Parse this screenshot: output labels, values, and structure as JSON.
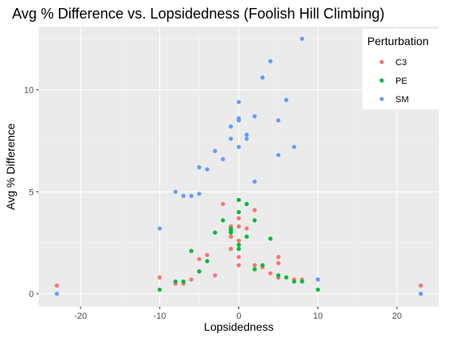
{
  "chart_data": {
    "type": "scatter",
    "title": "Avg % Difference vs. Lopsidedness (Foolish Hill Climbing)",
    "xlabel": "Lopsidedness",
    "ylabel": "Avg % Difference",
    "xlim": [
      -25.3,
      25.3
    ],
    "ylim": [
      -0.63,
      13.1
    ],
    "xticks": [
      -20,
      -10,
      0,
      10,
      20
    ],
    "yticks": [
      0,
      5,
      10
    ],
    "grid": true,
    "legend": {
      "title": "Perturbation",
      "position": "top-right"
    },
    "colors": {
      "C3": "#F8766D",
      "PE": "#00BA38",
      "SM": "#619CFF",
      "panel": "#EBEBEB",
      "grid_major": "#FFFFFF",
      "grid_minor": "#F5F5F5"
    },
    "series": [
      {
        "name": "C3",
        "color": "#F8766D",
        "points": [
          [
            -23,
            0.4
          ],
          [
            -10,
            0.8
          ],
          [
            -8,
            0.5
          ],
          [
            -7,
            0.5
          ],
          [
            -6,
            0.7
          ],
          [
            -5,
            1.7
          ],
          [
            -5,
            1.1
          ],
          [
            -4,
            1.9
          ],
          [
            -3,
            0.9
          ],
          [
            -2,
            4.4
          ],
          [
            -1,
            3.3
          ],
          [
            -1,
            2.8
          ],
          [
            -1,
            2.2
          ],
          [
            0,
            3.7
          ],
          [
            0,
            3.3
          ],
          [
            0,
            2.6
          ],
          [
            0,
            1.8
          ],
          [
            0,
            1.4
          ],
          [
            1,
            3.2
          ],
          [
            2,
            4.1
          ],
          [
            2,
            1.4
          ],
          [
            3,
            1.3
          ],
          [
            4,
            1.0
          ],
          [
            5,
            1.8
          ],
          [
            5,
            1.5
          ],
          [
            5,
            0.8
          ],
          [
            6,
            0.8
          ],
          [
            7,
            0.7
          ],
          [
            8,
            0.7
          ],
          [
            10,
            0.7
          ],
          [
            23,
            0.4
          ]
        ]
      },
      {
        "name": "PE",
        "color": "#00BA38",
        "points": [
          [
            -10,
            0.2
          ],
          [
            -8,
            0.6
          ],
          [
            -7,
            0.6
          ],
          [
            -6,
            2.1
          ],
          [
            -5,
            1.1
          ],
          [
            -4,
            1.6
          ],
          [
            -3,
            3.0
          ],
          [
            -2,
            3.6
          ],
          [
            -1,
            3.2
          ],
          [
            -1,
            3.1
          ],
          [
            -1,
            3.0
          ],
          [
            0,
            4.6
          ],
          [
            0,
            4.0
          ],
          [
            0,
            2.4
          ],
          [
            0,
            2.2
          ],
          [
            1,
            4.4
          ],
          [
            1,
            2.8
          ],
          [
            2,
            3.6
          ],
          [
            2,
            1.2
          ],
          [
            3,
            1.4
          ],
          [
            4,
            2.7
          ],
          [
            5,
            0.9
          ],
          [
            6,
            0.8
          ],
          [
            7,
            0.6
          ],
          [
            8,
            0.6
          ],
          [
            10,
            0.2
          ]
        ]
      },
      {
        "name": "SM",
        "color": "#619CFF",
        "points": [
          [
            -23,
            0.0
          ],
          [
            -10,
            3.2
          ],
          [
            -8,
            5.0
          ],
          [
            -7,
            4.8
          ],
          [
            -6,
            4.8
          ],
          [
            -5,
            4.9
          ],
          [
            -5,
            6.2
          ],
          [
            -4,
            6.1
          ],
          [
            -3,
            7.0
          ],
          [
            -2,
            6.6
          ],
          [
            -1,
            7.6
          ],
          [
            -1,
            8.2
          ],
          [
            0,
            9.4
          ],
          [
            0,
            8.6
          ],
          [
            0,
            8.5
          ],
          [
            0,
            7.2
          ],
          [
            1,
            7.8
          ],
          [
            1,
            7.6
          ],
          [
            2,
            8.7
          ],
          [
            2,
            5.5
          ],
          [
            3,
            10.6
          ],
          [
            4,
            11.4
          ],
          [
            5,
            8.5
          ],
          [
            5,
            6.8
          ],
          [
            6,
            9.5
          ],
          [
            7,
            7.2
          ],
          [
            8,
            12.5
          ],
          [
            10,
            0.7
          ],
          [
            23,
            0.0
          ]
        ]
      }
    ]
  }
}
